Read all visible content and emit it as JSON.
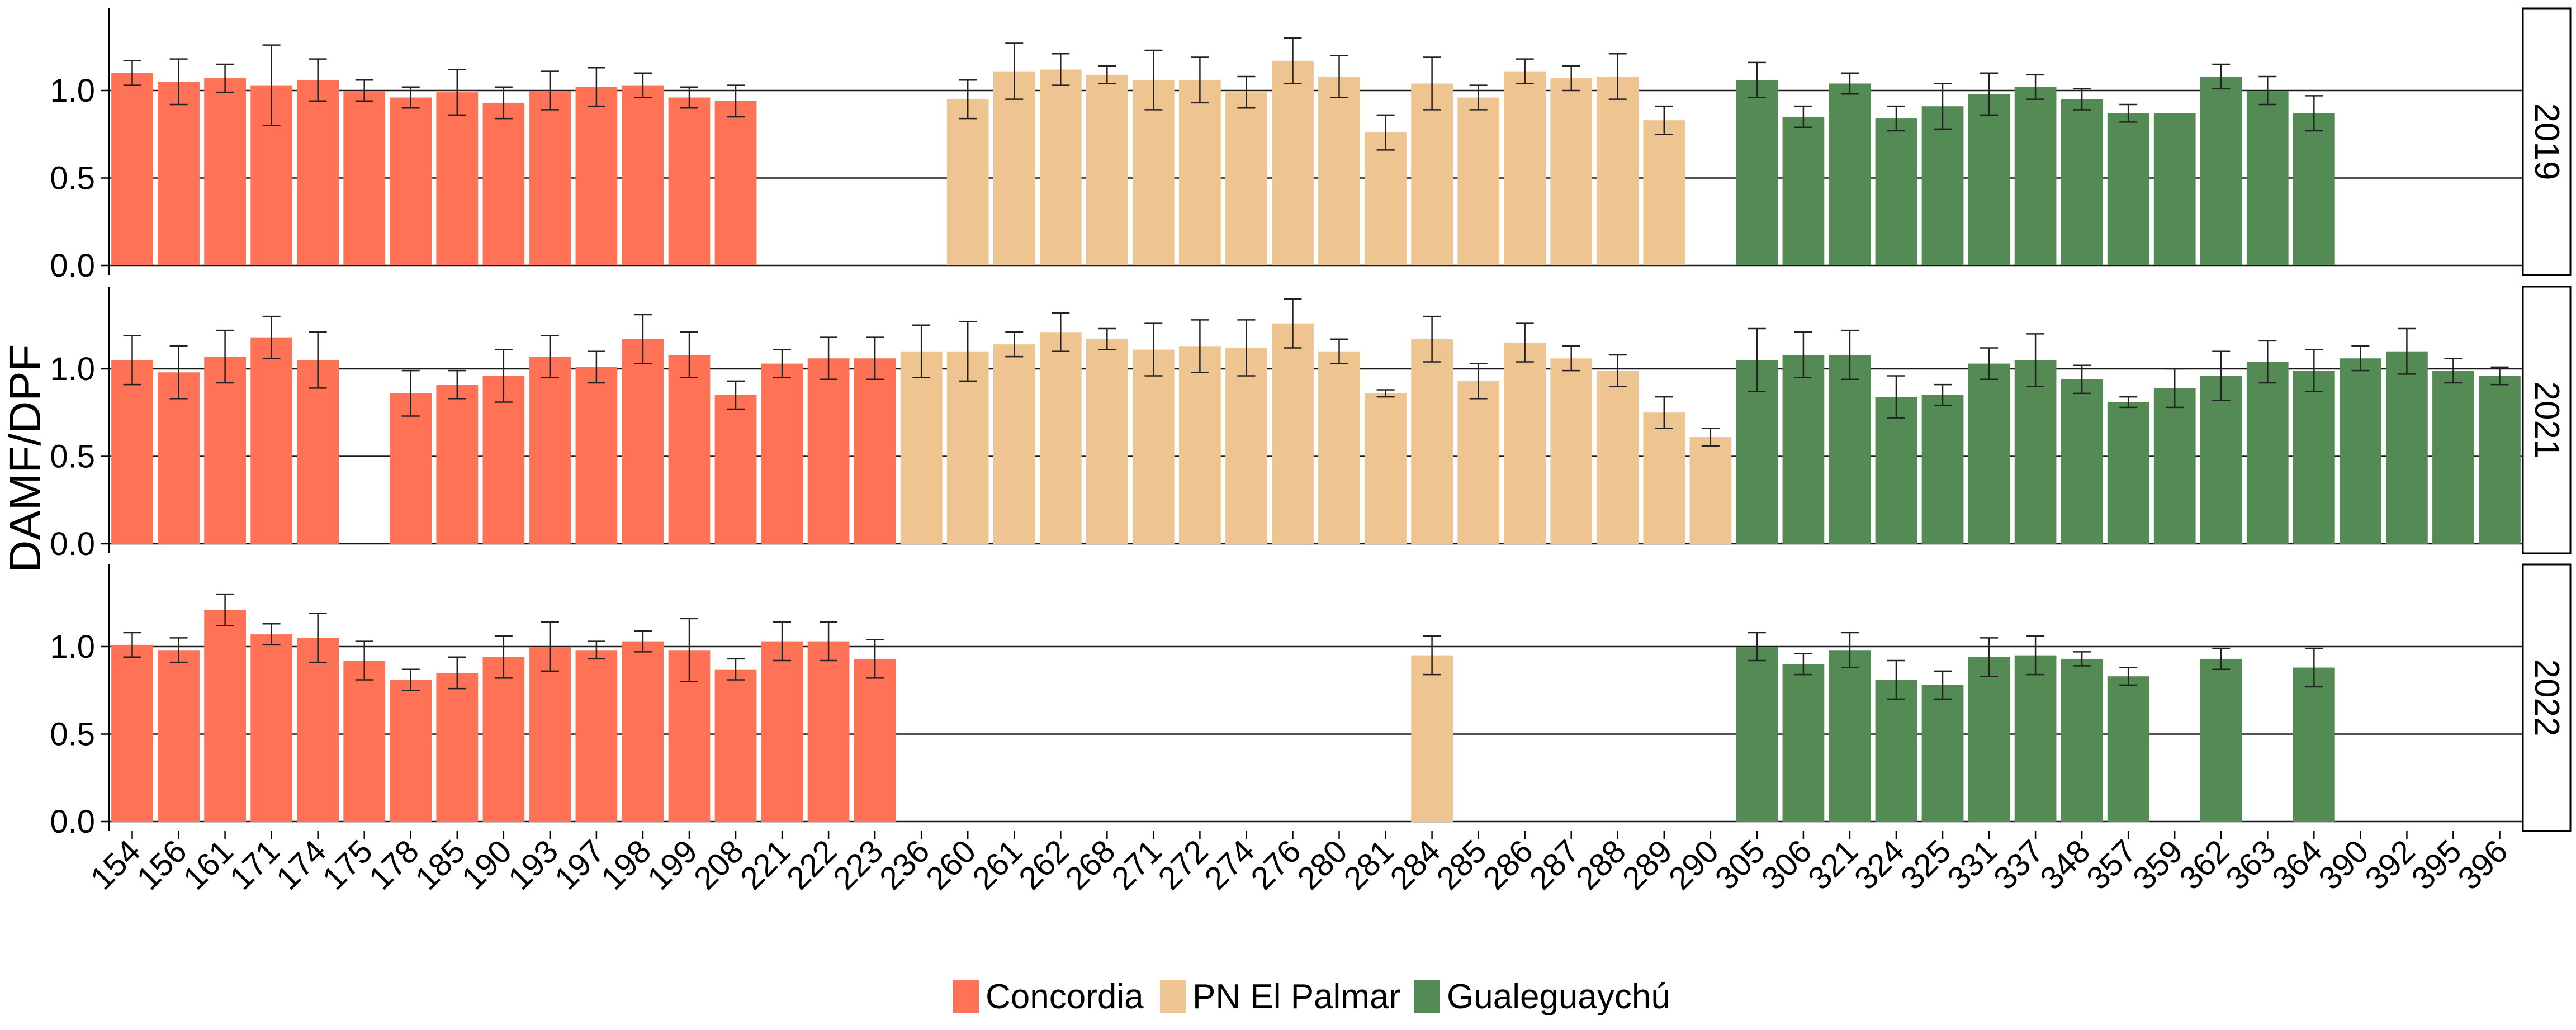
{
  "chart_data": {
    "type": "bar",
    "ylabel": "DAMF/DPF",
    "ylim": [
      0,
      1.5
    ],
    "yticks": [
      "0.0",
      "0.5",
      "1.0"
    ],
    "grid": "horizontal",
    "legend_position": "bottom",
    "categories": [
      "154",
      "156",
      "161",
      "171",
      "174",
      "175",
      "178",
      "185",
      "190",
      "193",
      "197",
      "198",
      "199",
      "208",
      "221",
      "222",
      "223",
      "236",
      "260",
      "261",
      "262",
      "268",
      "271",
      "272",
      "274",
      "276",
      "280",
      "281",
      "284",
      "285",
      "286",
      "287",
      "288",
      "289",
      "290",
      "305",
      "306",
      "321",
      "324",
      "325",
      "331",
      "337",
      "348",
      "357",
      "359",
      "362",
      "363",
      "364",
      "390",
      "392",
      "395",
      "396"
    ],
    "groups": [
      {
        "name": "Concordia",
        "color": "#FF7256"
      },
      {
        "name": "PN El Palmar",
        "color": "#EEC591"
      },
      {
        "name": "Gualeguaychú",
        "color": "#548B54"
      }
    ],
    "category_group": [
      0,
      0,
      0,
      0,
      0,
      0,
      0,
      0,
      0,
      0,
      0,
      0,
      0,
      0,
      0,
      0,
      0,
      1,
      1,
      1,
      1,
      1,
      1,
      1,
      1,
      1,
      1,
      1,
      1,
      1,
      1,
      1,
      1,
      1,
      1,
      2,
      2,
      2,
      2,
      2,
      2,
      2,
      2,
      2,
      2,
      2,
      2,
      2,
      2,
      2,
      2,
      2
    ],
    "panels": [
      {
        "label": "2019",
        "values": [
          1.1,
          1.05,
          1.07,
          1.03,
          1.06,
          1.0,
          0.96,
          0.99,
          0.93,
          1.0,
          1.02,
          1.03,
          0.96,
          0.94,
          null,
          null,
          null,
          null,
          0.95,
          1.11,
          1.12,
          1.09,
          1.06,
          1.06,
          0.99,
          1.17,
          1.08,
          0.76,
          1.04,
          0.96,
          1.11,
          1.07,
          1.08,
          0.83,
          null,
          1.06,
          0.85,
          1.04,
          0.84,
          0.91,
          0.98,
          1.02,
          0.95,
          0.87,
          0.87,
          1.08,
          1.0,
          0.87,
          null,
          null,
          null,
          null
        ],
        "errors": [
          0.07,
          0.13,
          0.08,
          0.23,
          0.12,
          0.06,
          0.06,
          0.13,
          0.09,
          0.11,
          0.11,
          0.07,
          0.06,
          0.09,
          null,
          null,
          null,
          null,
          0.11,
          0.16,
          0.09,
          0.05,
          0.17,
          0.13,
          0.09,
          0.13,
          0.12,
          0.1,
          0.15,
          0.07,
          0.07,
          0.07,
          0.13,
          0.08,
          null,
          0.1,
          0.06,
          0.06,
          0.07,
          0.13,
          0.12,
          0.07,
          0.06,
          0.05,
          0.0,
          0.07,
          0.08,
          0.1,
          null,
          null,
          null,
          null
        ]
      },
      {
        "label": "2021",
        "values": [
          1.05,
          0.98,
          1.07,
          1.18,
          1.05,
          null,
          0.86,
          0.91,
          0.96,
          1.07,
          1.01,
          1.17,
          1.08,
          0.85,
          1.03,
          1.06,
          1.06,
          1.1,
          1.1,
          1.14,
          1.21,
          1.17,
          1.11,
          1.13,
          1.12,
          1.26,
          1.1,
          0.86,
          1.17,
          0.93,
          1.15,
          1.06,
          0.99,
          0.75,
          0.61,
          1.05,
          1.08,
          1.08,
          0.84,
          0.85,
          1.03,
          1.05,
          0.94,
          0.81,
          0.89,
          0.96,
          1.04,
          0.99,
          1.06,
          1.1,
          0.99,
          0.96
        ],
        "errors": [
          0.14,
          0.15,
          0.15,
          0.12,
          0.16,
          null,
          0.13,
          0.08,
          0.15,
          0.12,
          0.09,
          0.14,
          0.13,
          0.08,
          0.08,
          0.12,
          0.12,
          0.15,
          0.17,
          0.07,
          0.11,
          0.06,
          0.15,
          0.15,
          0.16,
          0.14,
          0.07,
          0.02,
          0.13,
          0.1,
          0.11,
          0.07,
          0.09,
          0.09,
          0.05,
          0.18,
          0.13,
          0.14,
          0.12,
          0.06,
          0.09,
          0.15,
          0.08,
          0.03,
          0.11,
          0.14,
          0.12,
          0.12,
          0.07,
          0.13,
          0.07,
          0.05
        ]
      },
      {
        "label": "2022",
        "values": [
          1.01,
          0.98,
          1.21,
          1.07,
          1.05,
          0.92,
          0.81,
          0.85,
          0.94,
          1.0,
          0.98,
          1.03,
          0.98,
          0.87,
          1.03,
          1.03,
          0.93,
          null,
          null,
          null,
          null,
          null,
          null,
          null,
          null,
          null,
          null,
          null,
          0.95,
          null,
          null,
          null,
          null,
          null,
          null,
          1.0,
          0.9,
          0.98,
          0.81,
          0.78,
          0.94,
          0.95,
          0.93,
          0.83,
          null,
          0.93,
          null,
          0.88,
          null,
          null,
          null,
          null
        ],
        "errors": [
          0.07,
          0.07,
          0.09,
          0.06,
          0.14,
          0.11,
          0.06,
          0.09,
          0.12,
          0.14,
          0.05,
          0.06,
          0.18,
          0.06,
          0.11,
          0.11,
          0.11,
          null,
          null,
          null,
          null,
          null,
          null,
          null,
          null,
          null,
          null,
          null,
          0.11,
          null,
          null,
          null,
          null,
          null,
          null,
          0.08,
          0.06,
          0.1,
          0.11,
          0.08,
          0.11,
          0.11,
          0.04,
          0.05,
          null,
          0.06,
          null,
          0.11,
          null,
          null,
          null,
          null
        ]
      }
    ]
  }
}
